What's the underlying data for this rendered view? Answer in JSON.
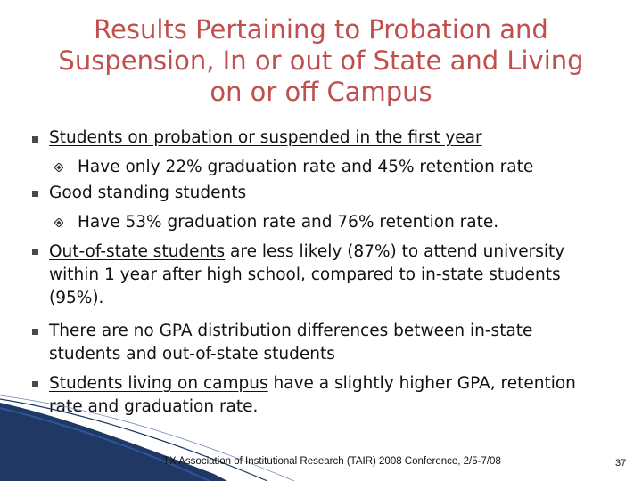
{
  "title": {
    "line1": "Results Pertaining to Probation and",
    "line2": "Suspension, In or out of State and Living",
    "line3": "on or off Campus"
  },
  "bullets": [
    {
      "text": "Students on probation or suspended in the first year"
    },
    {
      "text": "Have only 22%  graduation rate and 45% retention rate"
    },
    {
      "text": "Good standing students"
    },
    {
      "text": "Have 53% graduation rate and 76% retention rate."
    },
    {
      "underlined": "Out-of-state students",
      "rest_line1": " are less likely (87%) to attend university",
      "line2": "within 1  year after high school, compared to in-state students",
      "line3": "(95%)."
    },
    {
      "line1": "There are no GPA distribution differences between in-state",
      "line2": "students and out-of-state students"
    },
    {
      "underlined": "Students living on campus",
      "rest_line1": " have a slightly higher GPA, retention",
      "line2": "rate and graduation rate."
    }
  ],
  "footer": {
    "source": "TX Association of Institutional Research (TAIR) 2008 Conference, 2/5-7/08",
    "page_number": "37"
  },
  "colors": {
    "title": "#c0504d",
    "decoration": "#1f3864"
  }
}
